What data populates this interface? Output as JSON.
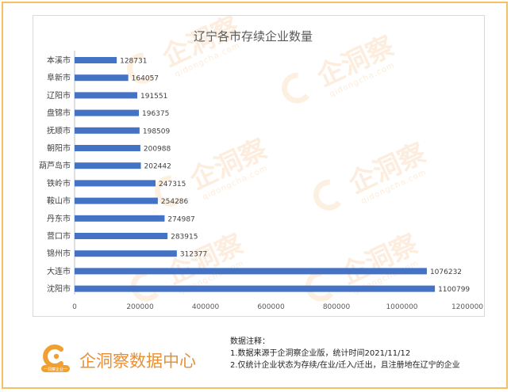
{
  "chart_data": {
    "type": "bar",
    "orientation": "horizontal",
    "title": "辽宁各市存续企业数量",
    "categories": [
      "本溪市",
      "阜新市",
      "辽阳市",
      "盘锦市",
      "抚顺市",
      "朝阳市",
      "葫芦岛市",
      "铁岭市",
      "鞍山市",
      "丹东市",
      "营口市",
      "锦州市",
      "大连市",
      "沈阳市"
    ],
    "values": [
      128731,
      164057,
      191551,
      196375,
      198509,
      200988,
      202442,
      247315,
      254286,
      274987,
      283915,
      312377,
      1076232,
      1100799
    ],
    "xlim": [
      0,
      1200000
    ],
    "xticks": [
      "0",
      "200000",
      "400000",
      "600000",
      "800000",
      "1000000",
      "1200000"
    ],
    "grid": false,
    "legend": "none",
    "bar_color": "#4472c4"
  },
  "watermark": {
    "text": "企洞察",
    "sub": "qidongcha.com"
  },
  "footer": {
    "logo_badge": "一洞察企业一",
    "brand": "企洞察数据中心",
    "notes_title": "数据注释：",
    "notes": [
      "1.数据来源于企洞察企业版，统计时间2021/11/12",
      "2.仅统计企业状态为存续/在业/迁入/迁出，且注册地在辽宁的企业"
    ]
  }
}
